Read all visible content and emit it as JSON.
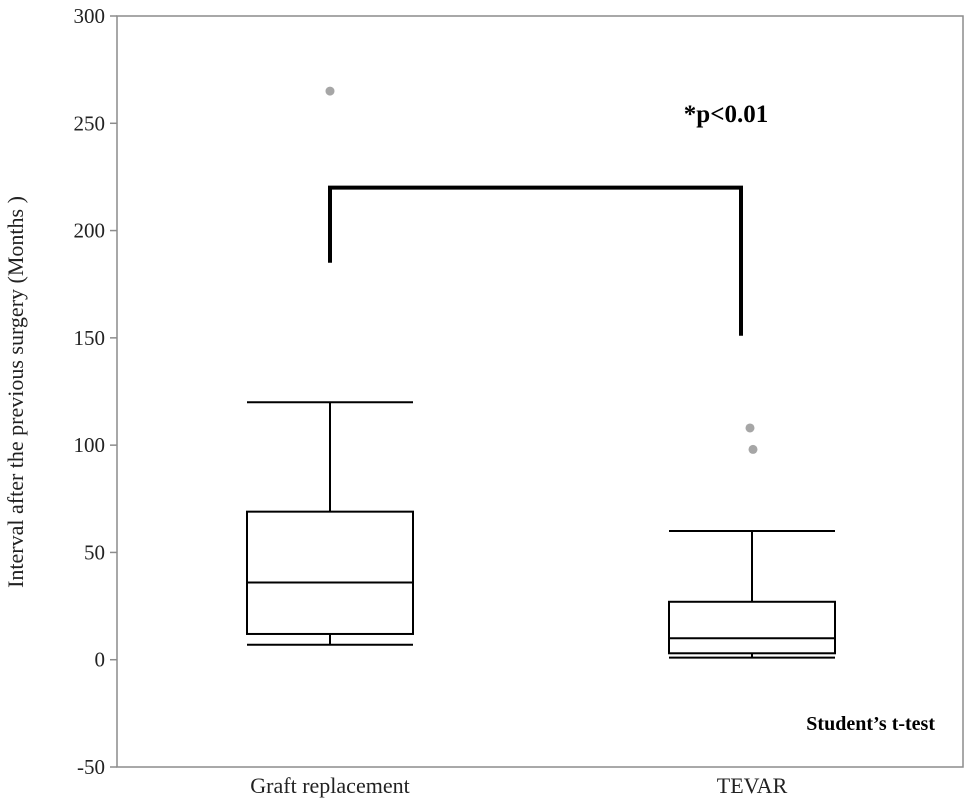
{
  "chart_data": {
    "type": "boxplot",
    "ylabel": "Interval after the previous surgery (Months )",
    "ylim": [
      -50,
      300
    ],
    "yticks": [
      -50,
      0,
      50,
      100,
      150,
      200,
      250,
      300
    ],
    "ytick_labels": [
      "-50",
      "0",
      "50",
      "100",
      "150",
      "200",
      "250",
      "300"
    ],
    "grid": false,
    "categories": [
      "Graft replacement",
      "TEVAR"
    ],
    "boxes": [
      {
        "category": "Graft replacement",
        "whisker_low": 7,
        "q1": 12,
        "median": 36,
        "q3": 69,
        "whisker_high": 120,
        "outliers": [
          265
        ]
      },
      {
        "category": "TEVAR",
        "whisker_low": 1,
        "q1": 3,
        "median": 10,
        "q3": 27,
        "whisker_high": 60,
        "outliers": [
          108,
          98
        ]
      }
    ],
    "annotations": {
      "significance": "*p<0.01",
      "test": "Student’s t-test",
      "bracket": {
        "top": 220,
        "left_end": 185,
        "right_end": 151
      }
    },
    "colors": {
      "box": "#000000",
      "outlier": "#a6a6a6",
      "bracket": "#000000",
      "frame": "#8c8c8c"
    }
  }
}
